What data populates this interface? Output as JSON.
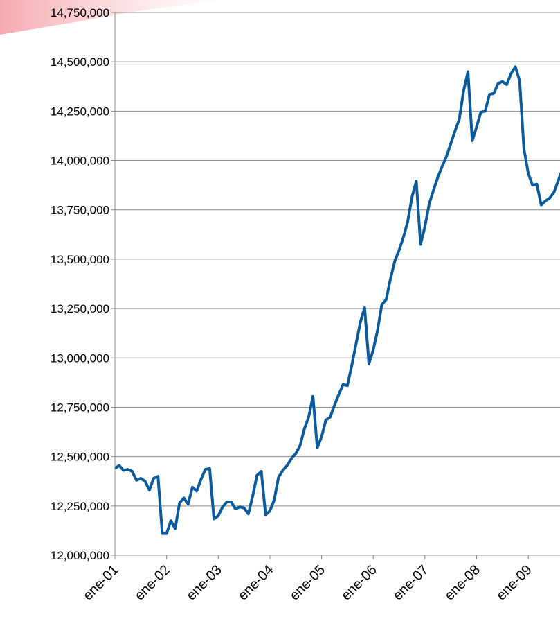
{
  "chart_data": {
    "type": "line",
    "categories": [
      "ene-01",
      null,
      null,
      null,
      null,
      null,
      null,
      null,
      null,
      null,
      null,
      null,
      "ene-02",
      null,
      null,
      null,
      null,
      null,
      null,
      null,
      null,
      null,
      null,
      null,
      "ene-03",
      null,
      null,
      null,
      null,
      null,
      null,
      null,
      null,
      null,
      null,
      null,
      "ene-04",
      null,
      null,
      null,
      null,
      null,
      null,
      null,
      null,
      null,
      null,
      null,
      "ene-05",
      null,
      null,
      null,
      null,
      null,
      null,
      null,
      null,
      null,
      null,
      null,
      "ene-06",
      null,
      null,
      null,
      null,
      null,
      null,
      null,
      null,
      null,
      null,
      null,
      "ene-07",
      null,
      null,
      null,
      null,
      null,
      null,
      null,
      null,
      null,
      null,
      null,
      "ene-08",
      null,
      null,
      null,
      null,
      null,
      null,
      null,
      null,
      null,
      null,
      null,
      "ene-09",
      null,
      null,
      null,
      null,
      null,
      null,
      null,
      null
    ],
    "series": [
      {
        "color": "#0b5a9c",
        "values": [
          12440000,
          12455000,
          12430000,
          12435000,
          12425000,
          12380000,
          12390000,
          12375000,
          12330000,
          12390000,
          12400000,
          12110000,
          12110000,
          12175000,
          12135000,
          12265000,
          12290000,
          12260000,
          12345000,
          12325000,
          12385000,
          12435000,
          12440000,
          12185000,
          12200000,
          12245000,
          12270000,
          12270000,
          12235000,
          12245000,
          12240000,
          12210000,
          12300000,
          12405000,
          12425000,
          12205000,
          12225000,
          12280000,
          12395000,
          12430000,
          12455000,
          12490000,
          12515000,
          12555000,
          12640000,
          12700000,
          12805000,
          12545000,
          12600000,
          12685000,
          12700000,
          12760000,
          12815000,
          12865000,
          12860000,
          12960000,
          13070000,
          13180000,
          13255000,
          12970000,
          13040000,
          13140000,
          13270000,
          13295000,
          13400000,
          13490000,
          13545000,
          13610000,
          13690000,
          13815000,
          13895000,
          13575000,
          13665000,
          13780000,
          13850000,
          13915000,
          13970000,
          14020000,
          14085000,
          14150000,
          14210000,
          14355000,
          14450000,
          14100000,
          14170000,
          14245000,
          14250000,
          14335000,
          14340000,
          14390000,
          14400000,
          14385000,
          14440000,
          14475000,
          14405000,
          14060000,
          13935000,
          13875000,
          13880000,
          13775000,
          13795000,
          13810000,
          13840000,
          13900000,
          13960000
        ]
      }
    ],
    "ylim": [
      12000000,
      14750000
    ],
    "yticks": [
      {
        "value": 12000000,
        "label": "12,000,000"
      },
      {
        "value": 12250000,
        "label": "12,250,000"
      },
      {
        "value": 12500000,
        "label": "12,500,000"
      },
      {
        "value": 12750000,
        "label": "12,750,000"
      },
      {
        "value": 13000000,
        "label": "13,000,000"
      },
      {
        "value": 13250000,
        "label": "13,250,000"
      },
      {
        "value": 13500000,
        "label": "13,500,000"
      },
      {
        "value": 13750000,
        "label": "13,750,000"
      },
      {
        "value": 14000000,
        "label": "14,000,000"
      },
      {
        "value": 14250000,
        "label": "14,250,000"
      },
      {
        "value": 14500000,
        "label": "14,500,000"
      },
      {
        "value": 14750000,
        "label": "14,750,000"
      }
    ],
    "grid": true
  }
}
